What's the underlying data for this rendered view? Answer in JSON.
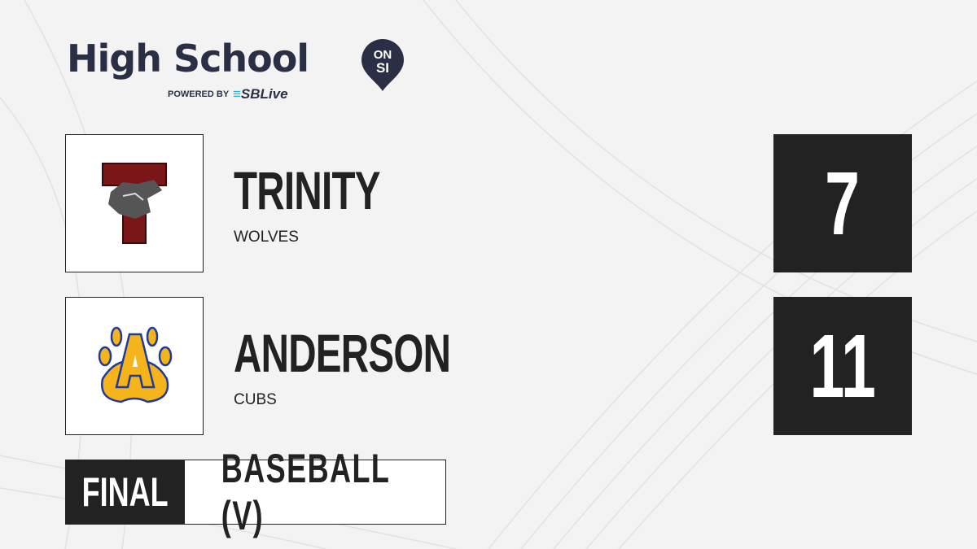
{
  "brand": {
    "title": "High School",
    "badge_top": "ON",
    "badge_bottom": "SI",
    "powered_by": "POWERED BY",
    "partner": "SBLive",
    "accent": "#1fb1ea",
    "text_color": "#2a2f45"
  },
  "teams": [
    {
      "name": "TRINITY",
      "mascot": "WOLVES",
      "score": "7",
      "logo": "trinity-wolves-logo",
      "color": "#7a1518"
    },
    {
      "name": "ANDERSON",
      "mascot": "CUBS",
      "score": "11",
      "logo": "anderson-cubs-paw-logo",
      "color": "#f5b51a"
    }
  ],
  "game": {
    "status": "FINAL",
    "sport": "BASEBALL (V)"
  }
}
